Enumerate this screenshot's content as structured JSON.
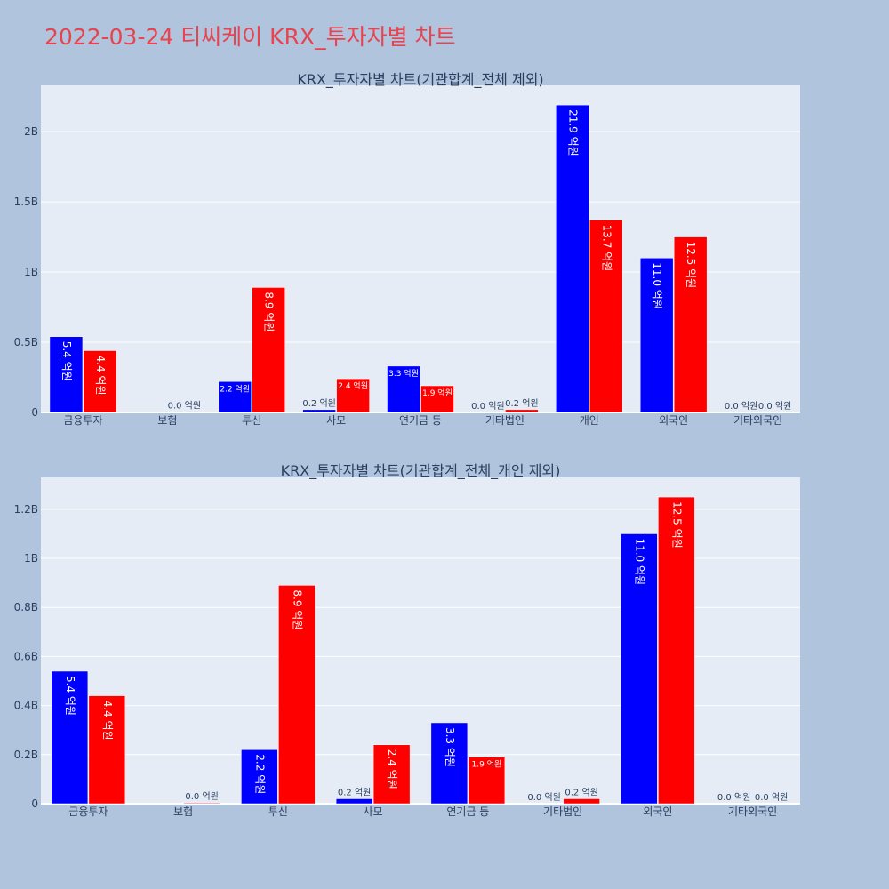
{
  "page": {
    "title": "2022-03-24 티씨케이 KRX_투자자별 차트"
  },
  "colors": {
    "background": "#b0c4de",
    "plot_bg": "#e5ecf6",
    "buy": "#0000ff",
    "sell": "#ff0000",
    "title": "#e8434f"
  },
  "chart_data": [
    {
      "type": "bar",
      "title": "KRX_투자자별 차트(기관합계_전체 제외)",
      "categories": [
        "금융투자",
        "보험",
        "투신",
        "사모",
        "연기금 등",
        "기타법인",
        "개인",
        "외국인",
        "기타외국인"
      ],
      "series": [
        {
          "color": "#0000ff",
          "values": [
            540000000,
            0,
            220000000,
            20000000,
            330000000,
            0,
            2190000000,
            1100000000,
            0
          ],
          "labels": [
            "5.4 억원",
            "",
            "2.2 억원",
            "0.2 억원",
            "3.3 억원",
            "0.0 억원",
            "21.9 억원",
            "11.0 억원",
            "0.0 억원"
          ]
        },
        {
          "color": "#ff0000",
          "values": [
            440000000,
            3000000,
            890000000,
            240000000,
            190000000,
            20000000,
            1370000000,
            1250000000,
            0
          ],
          "labels": [
            "4.4 억원",
            "0.0 억원",
            "8.9 억원",
            "2.4 억원",
            "1.9 억원",
            "0.2 억원",
            "13.7 억원",
            "12.5 억원",
            "0.0 억원"
          ]
        }
      ],
      "ylim": [
        0,
        2330000000
      ],
      "yticks": [
        0,
        500000000,
        1000000000,
        1500000000,
        2000000000
      ],
      "yticklabels": [
        "0",
        "0.5B",
        "1B",
        "1.5B",
        "2B"
      ],
      "xlabel": "",
      "ylabel": "",
      "grid": true,
      "legend": "none"
    },
    {
      "type": "bar",
      "title": "KRX_투자자별 차트(기관합계_전체_개인 제외)",
      "categories": [
        "금융투자",
        "보험",
        "투신",
        "사모",
        "연기금 등",
        "기타법인",
        "외국인",
        "기타외국인"
      ],
      "series": [
        {
          "color": "#0000ff",
          "values": [
            540000000,
            0,
            220000000,
            20000000,
            330000000,
            0,
            1100000000,
            0
          ],
          "labels": [
            "5.4 억원",
            "",
            "2.2 억원",
            "0.2 억원",
            "3.3 억원",
            "0.0 억원",
            "11.0 억원",
            "0.0 억원"
          ]
        },
        {
          "color": "#ff0000",
          "values": [
            440000000,
            3000000,
            890000000,
            240000000,
            190000000,
            20000000,
            1250000000,
            0
          ],
          "labels": [
            "4.4 억원",
            "0.0 억원",
            "8.9 억원",
            "2.4 억원",
            "1.9 억원",
            "0.2 억원",
            "12.5 억원",
            "0.0 억원"
          ]
        }
      ],
      "ylim": [
        0,
        1330000000
      ],
      "yticks": [
        0,
        200000000,
        400000000,
        600000000,
        800000000,
        1000000000,
        1200000000
      ],
      "yticklabels": [
        "0",
        "0.2B",
        "0.4B",
        "0.6B",
        "0.8B",
        "1B",
        "1.2B"
      ],
      "xlabel": "",
      "ylabel": "",
      "grid": true,
      "legend": "none"
    }
  ]
}
